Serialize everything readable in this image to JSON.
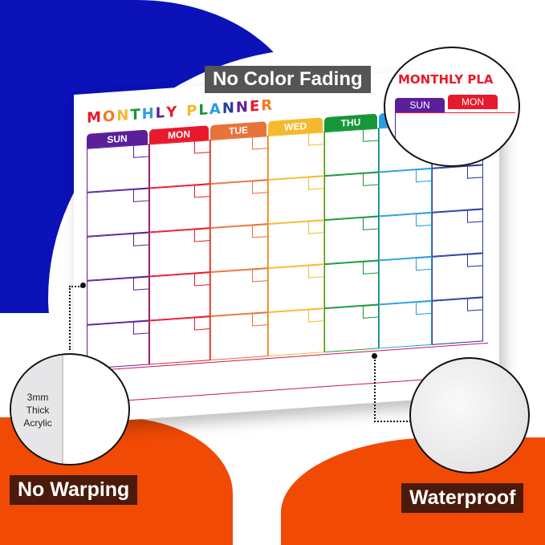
{
  "planner": {
    "title": "MONTHLY PLANNER",
    "title_colors": [
      "#e8192c",
      "#f07a1a",
      "#f5b92e",
      "#16973a",
      "#2a9de0",
      "#5b1f9a",
      "#e8192c",
      "#f07a1a",
      "#f5b92e",
      "#16973a",
      "#2a9de0",
      "#2a3aa0",
      "#5b1f9a",
      "#e8192c",
      "#f07a1a"
    ],
    "days": [
      {
        "label": "SUN",
        "color": "#5b1f9a"
      },
      {
        "label": "MON",
        "color": "#e8192c"
      },
      {
        "label": "TUE",
        "color": "#e8733a"
      },
      {
        "label": "WED",
        "color": "#f5b92e"
      },
      {
        "label": "THU",
        "color": "#16973a"
      },
      {
        "label": "",
        "color": "#2a9de0"
      },
      {
        "label": "",
        "color": "#2a3aa0"
      }
    ]
  },
  "zoom_callout": {
    "title": "MONTHLY PLA",
    "days": [
      "SUN",
      "MON"
    ]
  },
  "features": {
    "color": "No Color Fading",
    "warping": "No Warping",
    "waterproof": "Waterproof",
    "thickness": "3mm Thick Acrylic"
  },
  "colors": {
    "blue": "#0a12b8",
    "orange": "#f04a05",
    "label_bg": "#4a1a0a"
  }
}
